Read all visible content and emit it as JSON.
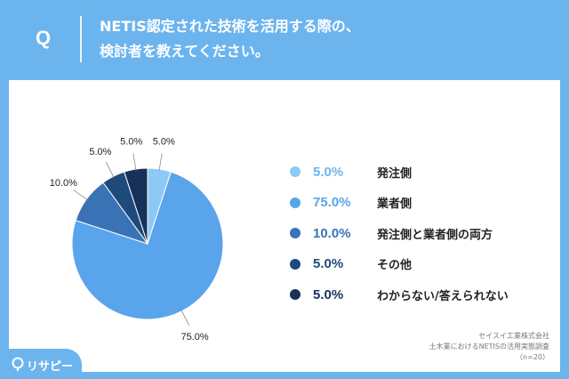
{
  "header": {
    "q_mark": "Q",
    "question_line1": "NETIS認定された技術を活用する際の、",
    "question_line2": "検討者を教えてください。"
  },
  "chart_data": {
    "type": "pie",
    "slices": [
      {
        "label": "発注側",
        "value": 5.0,
        "value_label": "5.0%",
        "color": "#8ec9f5"
      },
      {
        "label": "業者側",
        "value": 75.0,
        "value_label": "75.0%",
        "color": "#5aa4ec"
      },
      {
        "label": "発注側と業者側の両方",
        "value": 10.0,
        "value_label": "10.0%",
        "color": "#3a73b5"
      },
      {
        "label": "その他",
        "value": 5.0,
        "value_label": "5.0%",
        "color": "#1f4a7c"
      },
      {
        "label": "わからない/答えられない",
        "value": 5.0,
        "value_label": "5.0%",
        "color": "#17325a"
      }
    ]
  },
  "source": {
    "line1": "セイスイ工業株式会社",
    "line2": "土木業におけるNETISの活用実態調査",
    "line3": "（n=20）"
  },
  "logo": {
    "text": "リサピー",
    "icon": "pin-icon"
  }
}
